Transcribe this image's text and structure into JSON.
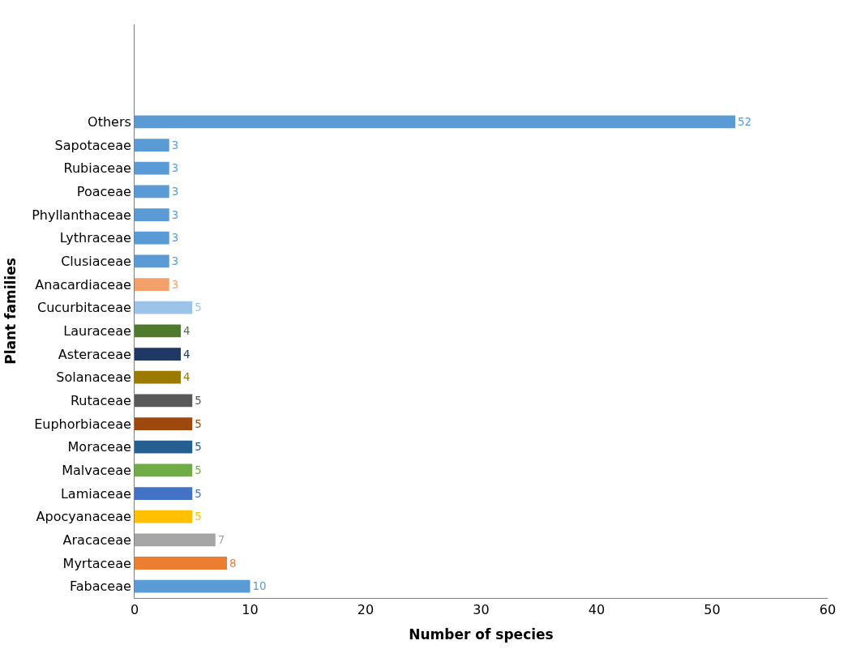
{
  "chart_data": {
    "type": "bar",
    "orientation": "horizontal",
    "xlabel": "Number of species",
    "ylabel": "Plant families",
    "categories": [
      "Others",
      "Sapotaceae",
      "Rubiaceae",
      "Poaceae",
      "Phyllanthaceae",
      "Lythraceae",
      "Clusiaceae",
      "Anacardiaceae",
      "Cucurbitaceae",
      "Lauraceae",
      "Asteraceae",
      "Solanaceae",
      "Rutaceae",
      "Euphorbiaceae",
      "Moraceae",
      "Malvaceae",
      "Lamiaceae",
      "Apocyanaceae",
      "Aracaceae",
      "Myrtaceae",
      "Fabaceae"
    ],
    "values": [
      52,
      3,
      3,
      3,
      3,
      3,
      3,
      3,
      5,
      4,
      4,
      4,
      5,
      5,
      5,
      5,
      5,
      5,
      7,
      8,
      10
    ],
    "colors": [
      "#5b9bd5",
      "#5b9bd5",
      "#5b9bd5",
      "#5b9bd5",
      "#5b9bd5",
      "#5b9bd5",
      "#5b9bd5",
      "#f4a06a",
      "#9dc3e6",
      "#4e7a2d",
      "#203864",
      "#9c7a00",
      "#595959",
      "#9e480e",
      "#255e91",
      "#70ad47",
      "#4472c4",
      "#ffc000",
      "#a5a5a5",
      "#ed7d31",
      "#5b9bd5"
    ],
    "xlim": [
      0,
      60
    ],
    "xticks": [
      0,
      10,
      20,
      30,
      40,
      50,
      60
    ],
    "legend": false,
    "data_labels": true
  }
}
